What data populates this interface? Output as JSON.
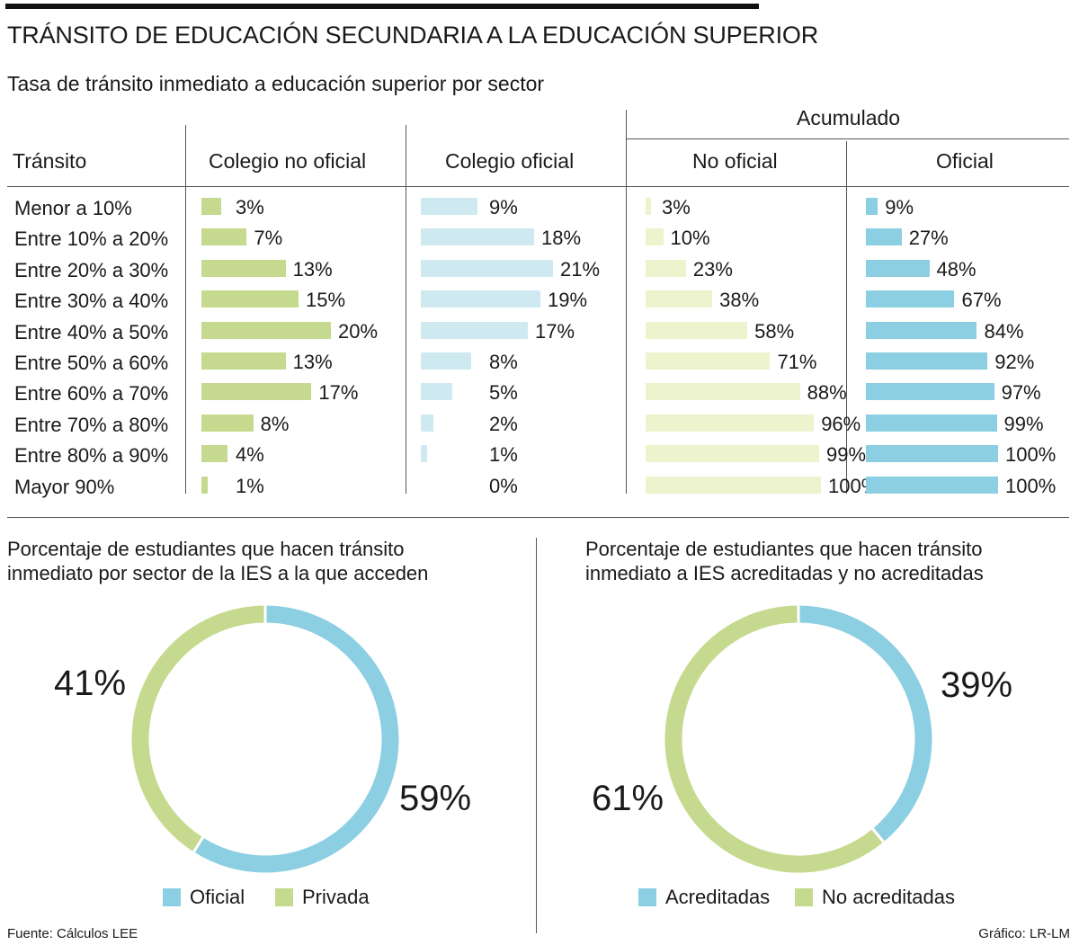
{
  "title": "TRÁNSITO DE EDUCACIÓN SECUNDARIA A LA EDUCACIÓN SUPERIOR",
  "subtitle": "Tasa de tránsito inmediato a educación superior por sector",
  "table": {
    "group_header": "Acumulado",
    "row_header": "Tránsito",
    "columns": [
      "Colegio no oficial",
      "Colegio oficial",
      "No oficial",
      "Oficial"
    ],
    "colors": {
      "green": "#c5da8e",
      "lightblue": "#cfe9f1",
      "paleyellow": "#edf3cc",
      "blue": "#8ccfe2"
    }
  },
  "chart_data": [
    {
      "type": "bar",
      "title": "Tasa de tránsito inmediato a educación superior por sector",
      "categories": [
        "Menor a 10%",
        "Entre 10% a 20%",
        "Entre 20% a 30%",
        "Entre 30% a 40%",
        "Entre 40% a 50%",
        "Entre 50% a 60%",
        "Entre 60% a 70%",
        "Entre 70% a 80%",
        "Entre 80% a 90%",
        "Mayor 90%"
      ],
      "series": [
        {
          "name": "Colegio no oficial",
          "values": [
            3,
            7,
            13,
            15,
            20,
            13,
            17,
            8,
            4,
            1
          ],
          "labels": [
            "3%",
            "7%",
            "13%",
            "15%",
            "20%",
            "13%",
            "17%",
            "8%",
            "4%",
            "1%"
          ]
        },
        {
          "name": "Colegio oficial",
          "values": [
            9,
            18,
            21,
            19,
            17,
            8,
            5,
            2,
            1,
            0
          ],
          "labels": [
            "9%",
            "18%",
            "21%",
            "19%",
            "17%",
            "8%",
            "5%",
            "2%",
            "1%",
            "0%"
          ]
        },
        {
          "name": "Acumulado No oficial",
          "values": [
            3,
            10,
            23,
            38,
            58,
            71,
            88,
            96,
            99,
            100
          ],
          "labels": [
            "3%",
            "10%",
            "23%",
            "38%",
            "58%",
            "71%",
            "88%",
            "96%",
            "99%",
            "100%"
          ]
        },
        {
          "name": "Acumulado Oficial",
          "values": [
            9,
            27,
            48,
            67,
            84,
            92,
            97,
            99,
            100,
            100
          ],
          "labels": [
            "9%",
            "27%",
            "48%",
            "67%",
            "84%",
            "92%",
            "97%",
            "99%",
            "100%",
            "100%"
          ]
        }
      ],
      "xlabel": "",
      "ylabel": ""
    },
    {
      "type": "pie",
      "title": "Porcentaje de estudiantes que hacen tránsito inmediato por sector de la IES a la que acceden",
      "categories": [
        "Oficial",
        "Privada"
      ],
      "values": [
        59,
        41
      ],
      "labels": [
        "59%",
        "41%"
      ],
      "colors": [
        "#8ccfe2",
        "#c5da8e"
      ]
    },
    {
      "type": "pie",
      "title": "Porcentaje de estudiantes que hacen tránsito inmediato a IES acreditadas y no acreditadas",
      "categories": [
        "Acreditadas",
        "No acreditadas"
      ],
      "values": [
        39,
        61
      ],
      "labels": [
        "39%",
        "61%"
      ],
      "colors": [
        "#8ccfe2",
        "#c5da8e"
      ]
    }
  ],
  "donut1": {
    "title_line1": "Porcentaje de estudiantes que hacen tránsito",
    "title_line2": "inmediato por sector de la IES a la que acceden",
    "legend": [
      "Oficial",
      "Privada"
    ]
  },
  "donut2": {
    "title_line1": "Porcentaje de estudiantes que hacen tránsito",
    "title_line2": "inmediato a IES acreditadas y no acreditadas",
    "legend": [
      "Acreditadas",
      "No acreditadas"
    ]
  },
  "footer": {
    "source": "Fuente: Cálculos LEE",
    "credit": "Gráfico: LR-LM"
  }
}
